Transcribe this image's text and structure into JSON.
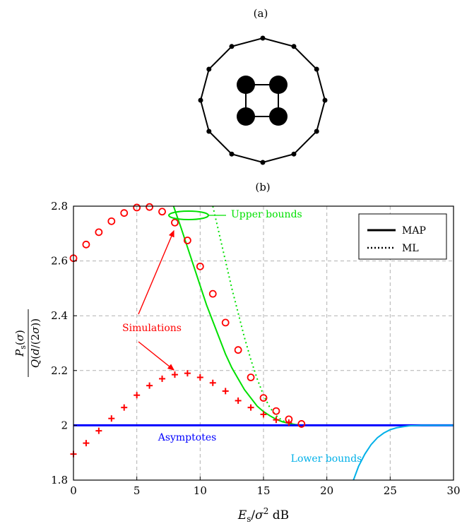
{
  "panels": {
    "a_label": "(a)",
    "b_label": "(b)"
  },
  "constellation": {
    "outer_points": 12,
    "inner_points": 4
  },
  "chart_data": {
    "type": "line",
    "xlabel": "E_s/σ² dB",
    "ylabel": "P_s(σ) / Q(d/(2σ))",
    "xlim": [
      0,
      30
    ],
    "ylim": [
      1.8,
      2.8
    ],
    "xticks": [
      0,
      5,
      10,
      15,
      20,
      25,
      30
    ],
    "yticks": [
      1.8,
      2,
      2.2,
      2.4,
      2.6,
      2.8
    ],
    "xtick_labels": [
      "0",
      "5",
      "10",
      "15",
      "20",
      "25",
      "30"
    ],
    "ytick_labels": [
      "1.8",
      "2",
      "2.2",
      "2.4",
      "2.6",
      "2.8"
    ],
    "grid": true,
    "legend": {
      "position": "top-right",
      "entries": [
        {
          "label": "MAP",
          "style": "solid"
        },
        {
          "label": "ML",
          "style": "dotted"
        }
      ]
    },
    "annotations": {
      "simulations": "Simulations",
      "upper_bounds": "Upper bounds",
      "lower_bounds": "Lower bounds",
      "asymptotes": "Asymptotes"
    },
    "colors": {
      "upper": "#00e000",
      "lower": "#00b0e8",
      "asymptote": "#0000ff",
      "simulation": "#ff0000",
      "grid": "#b0b0b0"
    },
    "series": [
      {
        "kind": "upper-bound-map",
        "style": "solid",
        "color": "#00e000",
        "x": [
          7.9,
          8.5,
          9,
          9.5,
          10,
          10.5,
          11,
          11.5,
          12,
          12.5,
          13,
          13.5,
          14,
          14.5,
          15,
          15.5,
          16,
          16.5,
          17,
          17.5,
          18
        ],
        "y": [
          2.8,
          2.72,
          2.65,
          2.58,
          2.51,
          2.44,
          2.38,
          2.32,
          2.26,
          2.21,
          2.17,
          2.13,
          2.1,
          2.07,
          2.05,
          2.035,
          2.022,
          2.013,
          2.007,
          2.003,
          2.0
        ]
      },
      {
        "kind": "upper-bound-ml",
        "style": "dotted",
        "color": "#00e000",
        "x": [
          11,
          11.5,
          12,
          12.5,
          13,
          13.5,
          14,
          14.5,
          15,
          15.5,
          16,
          16.5,
          17,
          17.5,
          18
        ],
        "y": [
          2.8,
          2.7,
          2.6,
          2.5,
          2.41,
          2.32,
          2.24,
          2.17,
          2.11,
          2.065,
          2.035,
          2.017,
          2.007,
          2.002,
          2.0
        ]
      },
      {
        "kind": "asymptote",
        "style": "solid",
        "color": "#0000ff",
        "x": [
          0,
          30
        ],
        "y": [
          2,
          2
        ]
      },
      {
        "kind": "asymptote-ml",
        "style": "dotted",
        "color": "#0000ff",
        "x": [
          18,
          30
        ],
        "y": [
          2,
          2
        ]
      },
      {
        "kind": "lower-bound",
        "style": "solid",
        "color": "#00b0e8",
        "x": [
          22.1,
          22.5,
          23,
          23.5,
          24,
          24.5,
          25,
          25.5,
          26,
          26.5,
          27,
          27.5,
          28,
          29,
          30
        ],
        "y": [
          1.8,
          1.85,
          1.895,
          1.93,
          1.955,
          1.972,
          1.984,
          1.991,
          1.995,
          1.998,
          1.999,
          2.0,
          2.0,
          2.0,
          2.0
        ]
      },
      {
        "kind": "simulation-ml",
        "marker": "circle",
        "color": "#ff0000",
        "x": [
          0,
          1,
          2,
          3,
          4,
          5,
          6,
          7,
          8,
          9,
          10,
          11,
          12,
          13,
          14,
          15,
          16,
          17,
          18
        ],
        "y": [
          2.61,
          2.66,
          2.705,
          2.745,
          2.775,
          2.795,
          2.797,
          2.78,
          2.74,
          2.675,
          2.58,
          2.48,
          2.375,
          2.275,
          2.175,
          2.1,
          2.052,
          2.022,
          2.005
        ]
      },
      {
        "kind": "simulation-map",
        "marker": "plus",
        "color": "#ff0000",
        "x": [
          0,
          1,
          2,
          3,
          4,
          5,
          6,
          7,
          8,
          9,
          10,
          11,
          12,
          13,
          14,
          15,
          16,
          17
        ],
        "y": [
          1.895,
          1.935,
          1.98,
          2.025,
          2.065,
          2.11,
          2.145,
          2.17,
          2.185,
          2.19,
          2.175,
          2.155,
          2.125,
          2.09,
          2.065,
          2.04,
          2.02,
          2.01
        ]
      }
    ]
  }
}
